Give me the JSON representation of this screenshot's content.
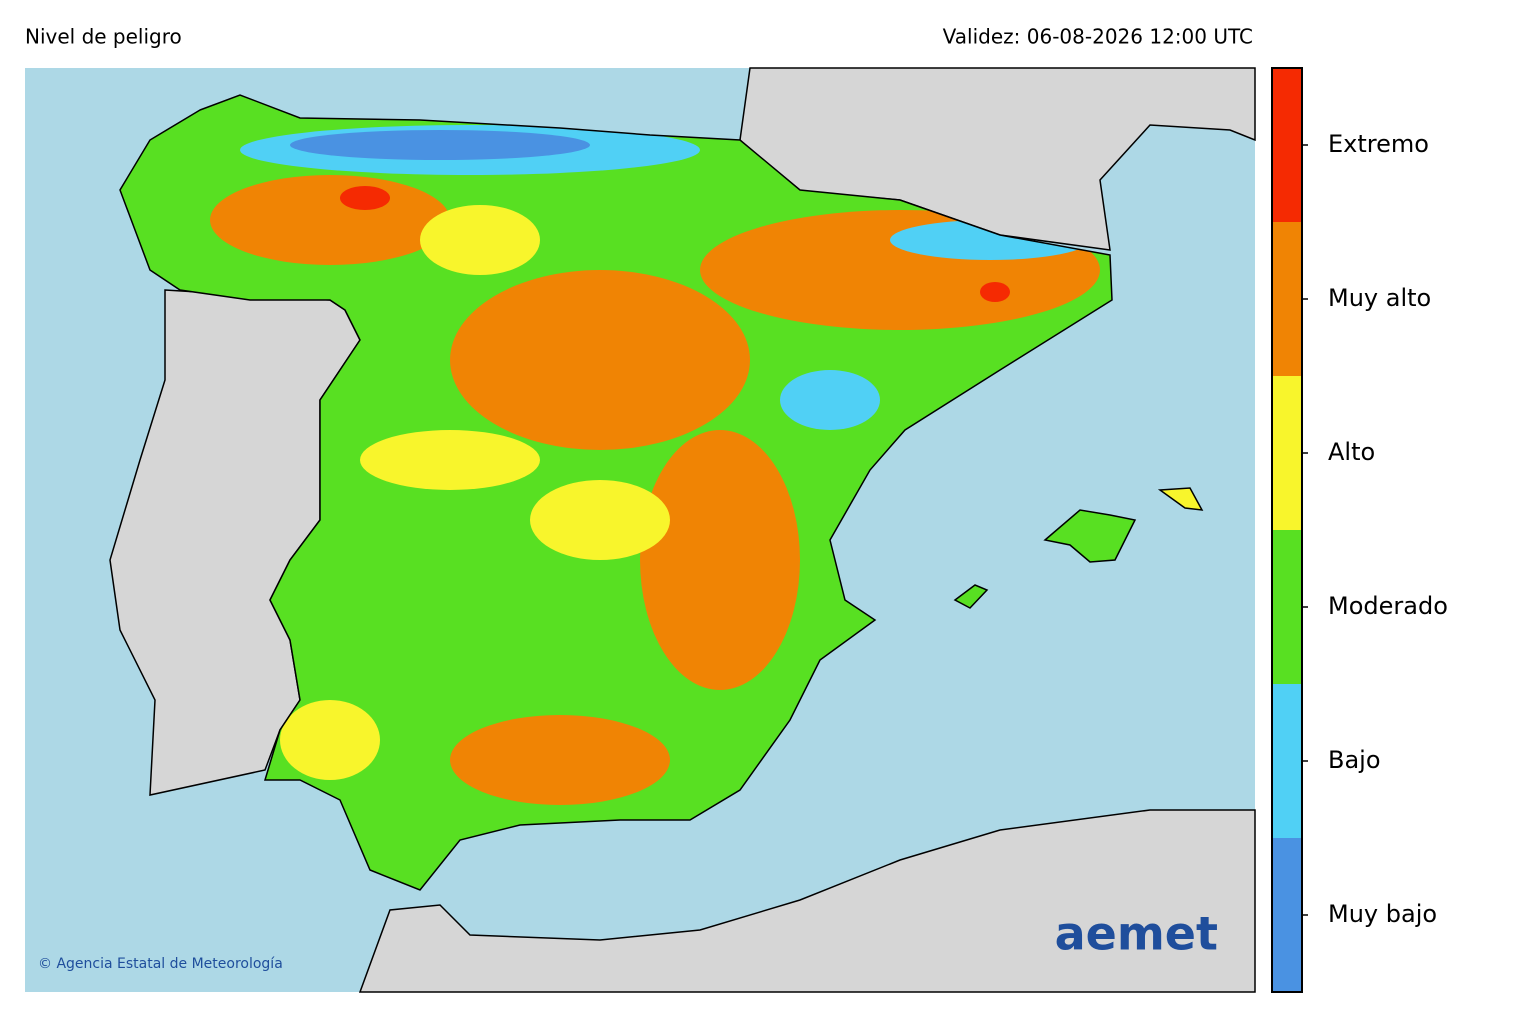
{
  "header": {
    "title": "Nivel de peligro",
    "validity": "Validez: 06-08-2026 12:00 UTC"
  },
  "legend": {
    "levels": [
      {
        "label": "Muy bajo",
        "color": "#4a92e2"
      },
      {
        "label": "Bajo",
        "color": "#50d0f5"
      },
      {
        "label": "Moderado",
        "color": "#58e022"
      },
      {
        "label": "Alto",
        "color": "#f8f52c"
      },
      {
        "label": "Muy alto",
        "color": "#f08404"
      },
      {
        "label": "Extremo",
        "color": "#f52a02"
      }
    ]
  },
  "credit": "© Agencia Estatal de Meteorología",
  "logo": "aemet"
}
